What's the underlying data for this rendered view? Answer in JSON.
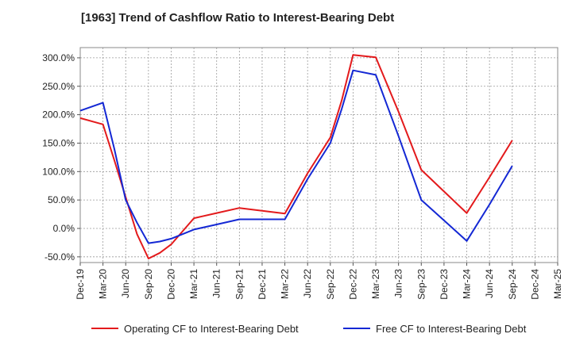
{
  "chart_data": {
    "type": "line",
    "title": "[1963]  Trend of Cashflow Ratio to Interest-Bearing Debt",
    "xlabel": "",
    "ylabel": "",
    "x": [
      "Dec-19",
      "Mar-20",
      "Jun-20",
      "Sep-20",
      "Dec-20",
      "Mar-21",
      "Jun-21",
      "Sep-21",
      "Dec-21",
      "Mar-22",
      "Jun-22",
      "Sep-22",
      "Dec-22",
      "Mar-23",
      "Jun-23",
      "Sep-23",
      "Dec-23",
      "Mar-24",
      "Jun-24",
      "Sep-24",
      "Dec-24",
      "Mar-25"
    ],
    "y_ticks": [
      "300.0%",
      "250.0%",
      "200.0%",
      "150.0%",
      "100.0%",
      "50.0%",
      "0.0%",
      "-50.0%"
    ],
    "y_tick_values": [
      300,
      250,
      200,
      150,
      100,
      50,
      0,
      -50
    ],
    "ylim": [
      -60,
      318
    ],
    "grid": true,
    "legend_position": "bottom",
    "series": [
      {
        "name": "Operating CF to Interest-Bearing Debt",
        "color": "#e31a1c",
        "points": [
          {
            "x": 0,
            "y": 194
          },
          {
            "x": 1,
            "y": 183
          },
          {
            "x": 1.5,
            "y": 120
          },
          {
            "x": 2,
            "y": 55
          },
          {
            "x": 2.5,
            "y": -10
          },
          {
            "x": 3,
            "y": -53
          },
          {
            "x": 3.5,
            "y": -43
          },
          {
            "x": 4,
            "y": -28
          },
          {
            "x": 4.5,
            "y": -5
          },
          {
            "x": 5,
            "y": 18
          },
          {
            "x": 6,
            "y": 27
          },
          {
            "x": 7,
            "y": 36
          },
          {
            "x": 8,
            "y": 31
          },
          {
            "x": 9,
            "y": 26
          },
          {
            "x": 10,
            "y": 97
          },
          {
            "x": 11,
            "y": 160
          },
          {
            "x": 11.5,
            "y": 225
          },
          {
            "x": 12,
            "y": 305
          },
          {
            "x": 13,
            "y": 301
          },
          {
            "x": 14,
            "y": 205
          },
          {
            "x": 15,
            "y": 103
          },
          {
            "x": 16,
            "y": 65
          },
          {
            "x": 17,
            "y": 27
          },
          {
            "x": 18,
            "y": 90
          },
          {
            "x": 19,
            "y": 155
          }
        ]
      },
      {
        "name": "Free CF to Interest-Bearing Debt",
        "color": "#1428d4",
        "points": [
          {
            "x": 0,
            "y": 207
          },
          {
            "x": 1,
            "y": 221
          },
          {
            "x": 1.5,
            "y": 140
          },
          {
            "x": 2,
            "y": 50
          },
          {
            "x": 2.5,
            "y": 10
          },
          {
            "x": 3,
            "y": -26
          },
          {
            "x": 3.5,
            "y": -23
          },
          {
            "x": 4,
            "y": -18
          },
          {
            "x": 4.5,
            "y": -10
          },
          {
            "x": 5,
            "y": -2
          },
          {
            "x": 6,
            "y": 7
          },
          {
            "x": 7,
            "y": 16
          },
          {
            "x": 8,
            "y": 16
          },
          {
            "x": 9,
            "y": 16
          },
          {
            "x": 10,
            "y": 87
          },
          {
            "x": 11,
            "y": 150
          },
          {
            "x": 11.5,
            "y": 210
          },
          {
            "x": 12,
            "y": 278
          },
          {
            "x": 13,
            "y": 270
          },
          {
            "x": 14,
            "y": 162
          },
          {
            "x": 15,
            "y": 50
          },
          {
            "x": 16,
            "y": 14
          },
          {
            "x": 17,
            "y": -22
          },
          {
            "x": 18,
            "y": 42
          },
          {
            "x": 19,
            "y": 110
          }
        ]
      }
    ]
  }
}
